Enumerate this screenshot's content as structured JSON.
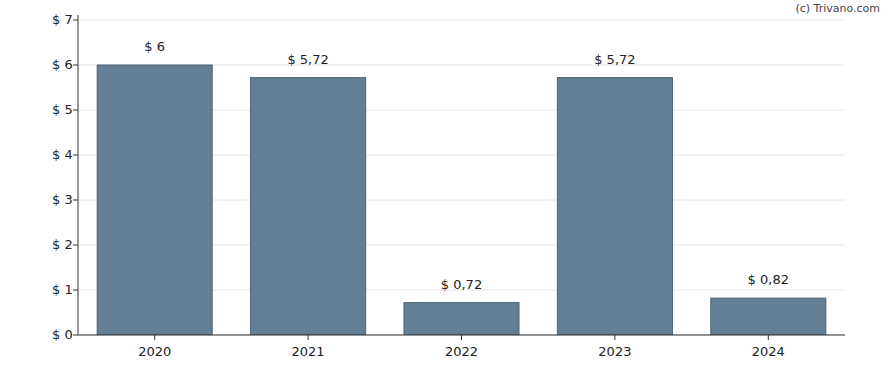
{
  "chart_data": {
    "type": "bar",
    "categories": [
      "2020",
      "2021",
      "2022",
      "2023",
      "2024"
    ],
    "values": [
      6,
      5.72,
      0.72,
      5.72,
      0.82
    ],
    "value_labels": [
      "$ 6",
      "$ 5,72",
      "$ 0,72",
      "$ 5,72",
      "$ 0,82"
    ],
    "data_labels": true,
    "color": "#647f93",
    "ylim": [
      0,
      7
    ],
    "yticks": [
      {
        "value": 0,
        "label": "$ 0"
      },
      {
        "value": 1,
        "label": "$ 1"
      },
      {
        "value": 2,
        "label": "$ 2"
      },
      {
        "value": 3,
        "label": "$ 3"
      },
      {
        "value": 4,
        "label": "$ 4"
      },
      {
        "value": 5,
        "label": "$ 5"
      },
      {
        "value": 6,
        "label": "$ 6"
      },
      {
        "value": 7,
        "label": "$ 7"
      }
    ],
    "grid": true,
    "annotations": [
      "(c) Trivano.com"
    ]
  }
}
